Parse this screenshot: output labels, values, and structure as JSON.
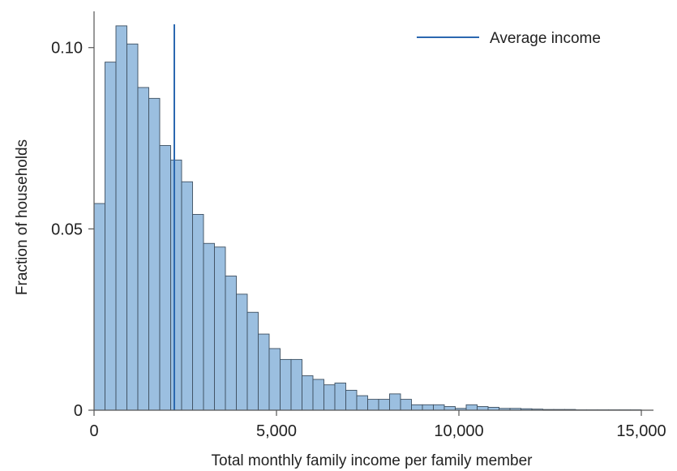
{
  "chart_data": {
    "type": "bar",
    "title": "",
    "xlabel": "Total monthly family income per family member",
    "ylabel": "Fraction of households",
    "xlim": [
      0,
      15000
    ],
    "ylim": [
      0,
      0.11
    ],
    "bin_width": 300,
    "bins_start": [
      0,
      300,
      600,
      900,
      1200,
      1500,
      1800,
      2100,
      2400,
      2700,
      3000,
      3300,
      3600,
      3900,
      4200,
      4500,
      4800,
      5100,
      5400,
      5700,
      6000,
      6300,
      6600,
      6900,
      7200,
      7500,
      7800,
      8100,
      8400,
      8700,
      9000,
      9300,
      9600,
      9900,
      10200,
      10500,
      10800,
      11100,
      11400,
      11700,
      12000,
      12300,
      12600,
      12900,
      13200,
      13500,
      13800,
      14100,
      14400,
      14700
    ],
    "values": [
      0.057,
      0.096,
      0.106,
      0.101,
      0.089,
      0.086,
      0.073,
      0.069,
      0.063,
      0.054,
      0.046,
      0.045,
      0.037,
      0.032,
      0.027,
      0.021,
      0.017,
      0.014,
      0.014,
      0.0095,
      0.0085,
      0.007,
      0.0075,
      0.0055,
      0.004,
      0.003,
      0.003,
      0.0045,
      0.003,
      0.0015,
      0.0015,
      0.0015,
      0.001,
      0.0005,
      0.0015,
      0.001,
      0.0008,
      0.0005,
      0.0005,
      0.0004,
      0.0003,
      0.0002,
      0.0002,
      0.0002,
      0.0001,
      0.0001,
      0.0001,
      0.0001,
      0.0001,
      0.0001
    ],
    "series": [
      {
        "name": "Average income",
        "type": "vline",
        "x": 2200
      }
    ],
    "x_ticks": [
      0,
      5000,
      10000,
      15000
    ],
    "x_tick_labels": [
      "0",
      "5,000",
      "10,000",
      "15,000"
    ],
    "y_ticks": [
      0,
      0.05,
      0.1
    ],
    "y_tick_labels": [
      "0",
      "0.05",
      "0.10"
    ],
    "legend_position": "top-right",
    "grid": false,
    "colors": {
      "bar_fill": "#9bbfe0",
      "bar_stroke": "#3d4f60",
      "average_line": "#2b68b0",
      "axis": "#555555"
    }
  }
}
